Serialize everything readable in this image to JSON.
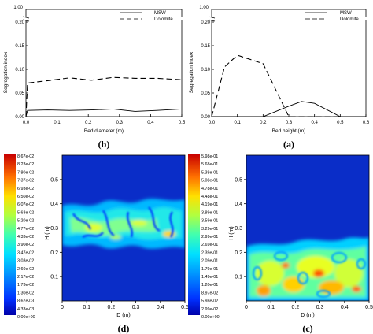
{
  "colors": {
    "scale": [
      "#0000a8",
      "#0010ff",
      "#0050ff",
      "#0090ff",
      "#00c8ff",
      "#00f0f0",
      "#30ffc8",
      "#70ff90",
      "#a8ff58",
      "#e0ff20",
      "#ffe600",
      "#ffb000",
      "#ff7800",
      "#ff4000",
      "#e00000",
      "#a80000"
    ],
    "bed_bg": "#0a2dc8"
  },
  "chart_data": [
    {
      "id": "b",
      "type": "line",
      "caption": "(b)",
      "xlabel": "Bed diameter (m)",
      "ylabel": "Segregation index",
      "xlim": [
        0,
        0.5
      ],
      "ylim": [
        0,
        0.2
      ],
      "axis_break_top": "1.00",
      "x_ticks": [
        "0.0",
        "0.1",
        "0.2",
        "0.3",
        "0.4",
        "0.5"
      ],
      "y_ticks": [
        "0.00",
        "0.05",
        "0.10",
        "0.15",
        "0.20"
      ],
      "legend_position": "top-right",
      "series": [
        {
          "name": "MSW",
          "style": "solid",
          "x": [
            0,
            0.005,
            0.07,
            0.14,
            0.21,
            0.28,
            0.35,
            0.42,
            0.5
          ],
          "y": [
            0.0,
            0.013,
            0.014,
            0.013,
            0.014,
            0.016,
            0.011,
            0.013,
            0.016
          ]
        },
        {
          "name": "Dolomite",
          "style": "dashed",
          "x": [
            0,
            0.005,
            0.07,
            0.14,
            0.21,
            0.28,
            0.35,
            0.42,
            0.5
          ],
          "y": [
            0.0,
            0.071,
            0.076,
            0.082,
            0.077,
            0.083,
            0.081,
            0.081,
            0.078
          ]
        }
      ]
    },
    {
      "id": "a",
      "type": "line",
      "caption": "(a)",
      "xlabel": "Bed height (m)",
      "ylabel": "Segregation index",
      "xlim": [
        0,
        0.6
      ],
      "ylim": [
        0,
        0.2
      ],
      "axis_break_top": "1.00",
      "x_ticks": [
        "0.0",
        "0.1",
        "0.2",
        "0.3",
        "0.4",
        "0.5",
        "0.6"
      ],
      "y_ticks": [
        "0.00",
        "0.05",
        "0.10",
        "0.15",
        "0.20"
      ],
      "legend_position": "top-right",
      "series": [
        {
          "name": "MSW",
          "style": "solid",
          "x": [
            0,
            0.1,
            0.2,
            0.3,
            0.35,
            0.4,
            0.5,
            0.6
          ],
          "y": [
            0,
            0,
            0,
            0.022,
            0.032,
            0.028,
            0.0,
            0.0
          ]
        },
        {
          "name": "Dolomite",
          "style": "dashed",
          "x": [
            0,
            0.05,
            0.1,
            0.2,
            0.3,
            0.4,
            0.5,
            0.6
          ],
          "y": [
            0,
            0.105,
            0.13,
            0.112,
            0.0,
            0.0,
            0.0,
            0.0
          ]
        }
      ]
    }
  ],
  "contours": [
    {
      "id": "d",
      "type": "heatmap",
      "caption": "(d)",
      "xlabel": "D (m)",
      "ylabel": "H (m)",
      "x_ticks": [
        "0",
        "0.1",
        "0.2",
        "0.3",
        "0.4",
        "0.5"
      ],
      "y_ticks": [
        "0.1",
        "0.2",
        "0.3",
        "0.4",
        "0.5"
      ],
      "scale_labels": [
        "8.67e-02",
        "8.23e-02",
        "7.80e-02",
        "7.37e-02",
        "6.93e-02",
        "6.50e-02",
        "6.07e-02",
        "5.63e-02",
        "5.20e-02",
        "4.77e-02",
        "4.33e-02",
        "3.90e-02",
        "3.47e-02",
        "3.03e-02",
        "2.60e-02",
        "2.17e-02",
        "1.73e-02",
        "1.30e-02",
        "8.67e-03",
        "4.33e-03",
        "0.00e+00"
      ],
      "band_H": [
        0.22,
        0.38
      ]
    },
    {
      "id": "c",
      "type": "heatmap",
      "caption": "(c)",
      "xlabel": "D (m)",
      "ylabel": "H (m)",
      "x_ticks": [
        "0",
        "0.1",
        "0.2",
        "0.3",
        "0.4",
        "0.5"
      ],
      "y_ticks": [
        "0.1",
        "0.2",
        "0.3",
        "0.4",
        "0.5"
      ],
      "scale_labels": [
        "5.98e-01",
        "5.68e-01",
        "5.38e-01",
        "5.08e-01",
        "4.78e-01",
        "4.48e-01",
        "4.19e-01",
        "3.89e-01",
        "3.59e-01",
        "3.29e-01",
        "2.99e-01",
        "2.69e-01",
        "2.39e-01",
        "2.09e-01",
        "1.79e-01",
        "1.49e-01",
        "1.20e-01",
        "8.97e-02",
        "5.98e-02",
        "2.99e-02",
        "0.00e+00"
      ],
      "band_H": [
        0.0,
        0.22
      ]
    }
  ]
}
